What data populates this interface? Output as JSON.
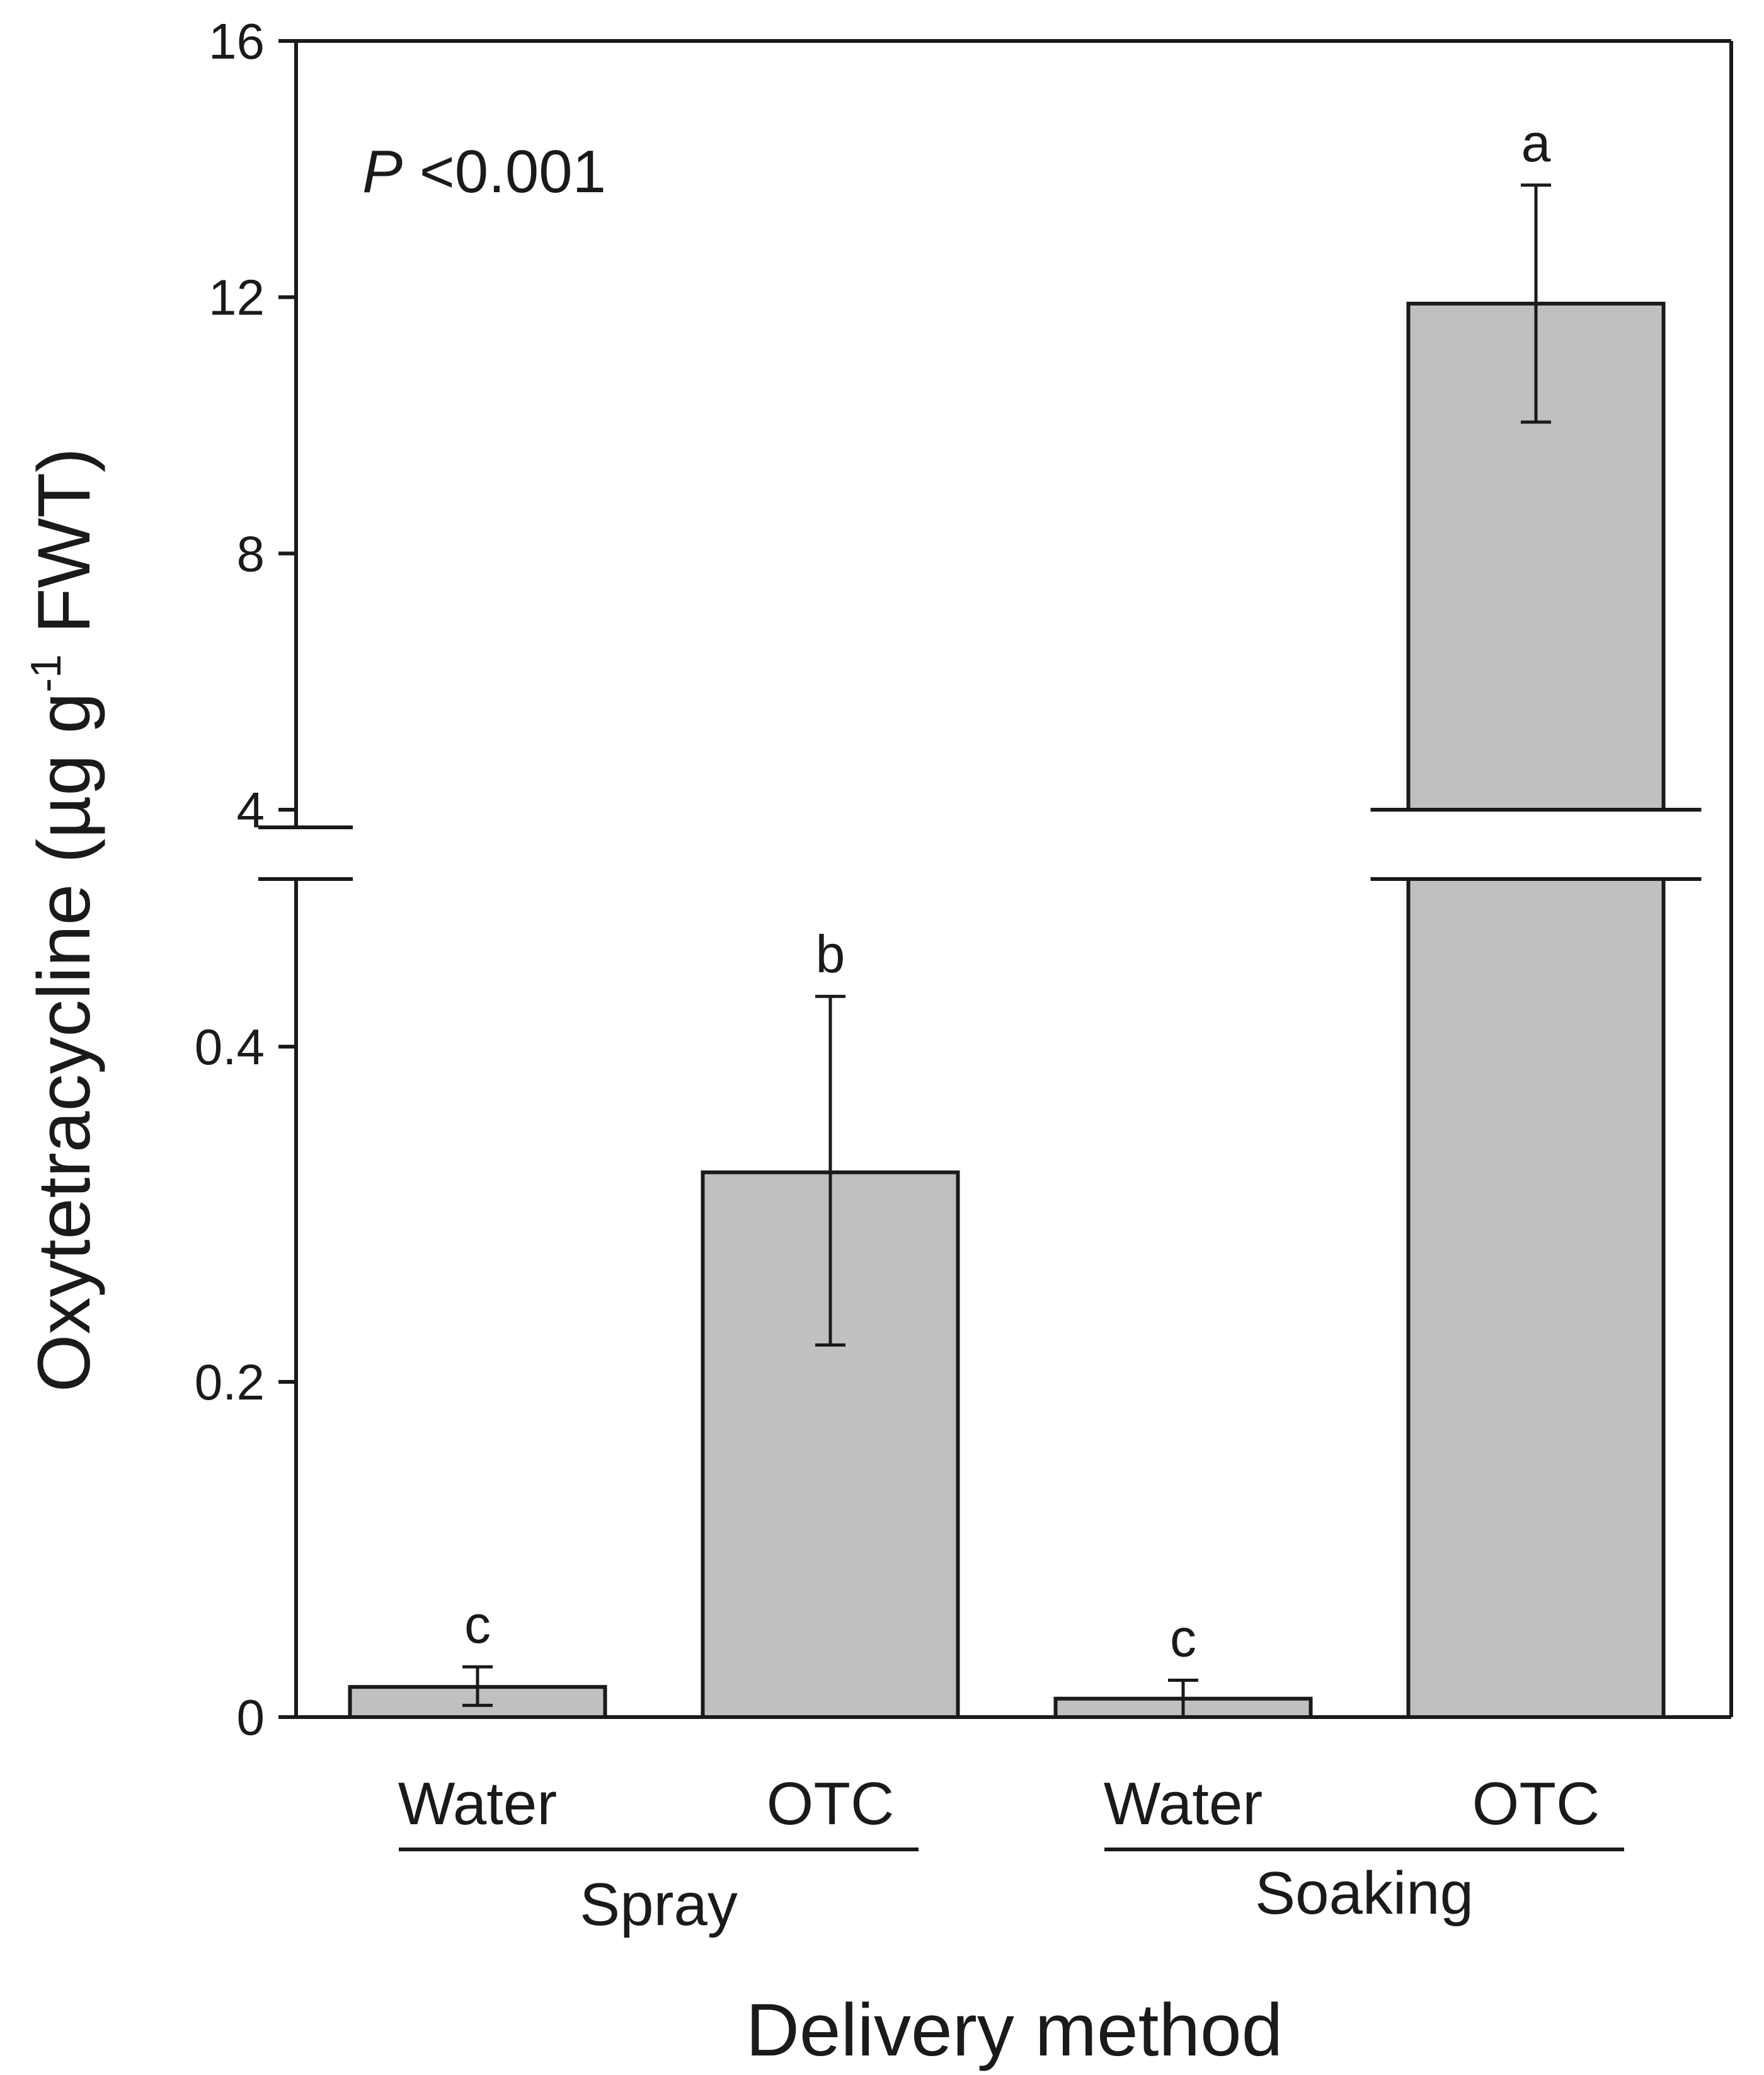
{
  "chart_data": {
    "type": "bar",
    "title": "",
    "xlabel": "Delivery method",
    "ylabel": "Oxytetracycline (µg g⁻¹ FWT)",
    "ylabel_parts": {
      "main": "Oxytetracycline (µg g",
      "sup": "-1",
      "tail": " FWT)"
    },
    "axis_break": true,
    "lower_ylim": [
      0,
      0.5
    ],
    "upper_ylim": [
      4,
      16
    ],
    "lower_ticks": [
      "0",
      "0.2",
      "0.4"
    ],
    "upper_ticks": [
      "4",
      "8",
      "12",
      "16"
    ],
    "groups": [
      {
        "name": "Spray",
        "categories": [
          "Water",
          "OTC"
        ]
      },
      {
        "name": "Soaking",
        "categories": [
          "Water",
          "OTC"
        ]
      }
    ],
    "categories": [
      "Water",
      "OTC",
      "Water",
      "OTC"
    ],
    "values": [
      0.018,
      0.325,
      0.011,
      11.9
    ],
    "error_low": [
      0.007,
      0.222,
      0.0,
      10.05
    ],
    "error_high": [
      0.03,
      0.43,
      0.022,
      13.75
    ],
    "significance_letters": [
      "c",
      "b",
      "c",
      "a"
    ],
    "annotation": {
      "italic": "P",
      "text": " <0.001"
    },
    "bar_color": "#c0c0c0",
    "edge_color": "#1a1a1a"
  }
}
